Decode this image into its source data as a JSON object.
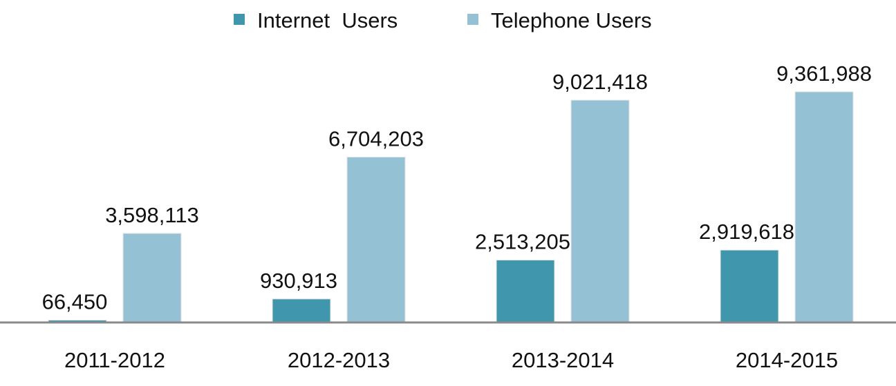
{
  "chart_data": {
    "type": "bar",
    "title": "",
    "xlabel": "",
    "ylabel": "",
    "categories": [
      "2011-2012",
      "2012-2013",
      "2013-2014",
      "2014-2015"
    ],
    "series": [
      {
        "name": "Internet  Users",
        "color": "#4096ac",
        "values": [
          66450,
          930913,
          2513205,
          2919618
        ],
        "labels": [
          "66,450",
          "930,913",
          "2,513,205",
          "2,919,618"
        ]
      },
      {
        "name": "Telephone Users",
        "color": "#94c2d4",
        "values": [
          3598113,
          6704203,
          9021418,
          9361988
        ],
        "labels": [
          "3,598,113",
          "6,704,203",
          "9,021,418",
          "9,361,988"
        ]
      }
    ],
    "ylim": [
      0,
      9500000
    ],
    "grid": false,
    "legend_position": "top-center"
  }
}
